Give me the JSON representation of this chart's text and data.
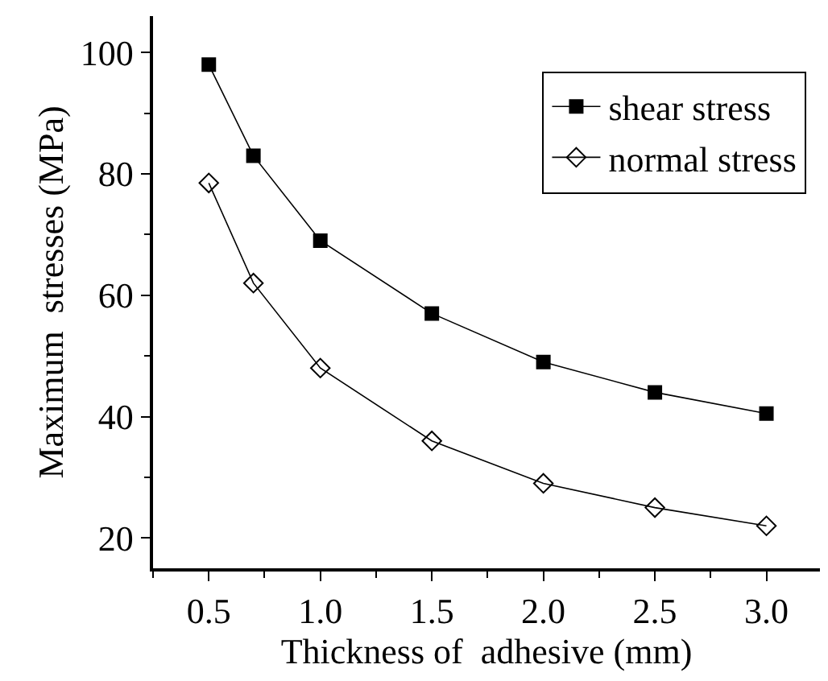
{
  "chart_data": {
    "type": "line",
    "xlabel": "Thickness of  adhesive (mm)",
    "ylabel": "Maximum  stresses (MPa)",
    "x": [
      0.5,
      0.7,
      1.0,
      1.5,
      2.0,
      2.5,
      3.0
    ],
    "series": [
      {
        "name": "shear stress",
        "color": "#000000",
        "marker": "square",
        "values": [
          98,
          83,
          69,
          57,
          49,
          44,
          40.5
        ]
      },
      {
        "name": "normal stress",
        "color": "#000000",
        "marker": "diamond-open",
        "values": [
          78.5,
          62,
          48,
          36,
          29,
          25,
          22
        ]
      }
    ],
    "xlim": [
      0.25,
      3.24
    ],
    "xticks": [
      {
        "value": 0.5,
        "label": "0.5"
      },
      {
        "value": 1,
        "label": "1.0"
      },
      {
        "value": 1.5,
        "label": "1.5"
      },
      {
        "value": 2,
        "label": "2.0"
      },
      {
        "value": 2.5,
        "label": "2.5"
      },
      {
        "value": 3,
        "label": "3.0"
      }
    ],
    "ylim": [
      15,
      106
    ],
    "yticks": [
      20,
      40,
      60,
      80,
      100
    ],
    "legend": "top right",
    "line_style": "solid"
  }
}
